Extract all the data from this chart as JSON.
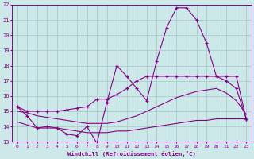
{
  "xlabel": "Windchill (Refroidissement éolien,°C)",
  "xlim": [
    -0.5,
    23.5
  ],
  "ylim": [
    13,
    22
  ],
  "xticks": [
    0,
    1,
    2,
    3,
    4,
    5,
    6,
    7,
    8,
    9,
    10,
    11,
    12,
    13,
    14,
    15,
    16,
    17,
    18,
    19,
    20,
    21,
    22,
    23
  ],
  "yticks": [
    13,
    14,
    15,
    16,
    17,
    18,
    19,
    20,
    21,
    22
  ],
  "bg_color": "#cce8e8",
  "line_color": "#880088",
  "grid_color": "#aacccc",
  "lines": [
    {
      "x": [
        0,
        1,
        2,
        3,
        4,
        5,
        6,
        7,
        8,
        9,
        10,
        11,
        12,
        13,
        14,
        15,
        16,
        17,
        18,
        19,
        20,
        21,
        22,
        23
      ],
      "y": [
        15.3,
        14.7,
        13.9,
        14.0,
        13.9,
        13.5,
        13.4,
        14.0,
        12.9,
        15.6,
        18.0,
        17.3,
        16.5,
        15.7,
        18.3,
        20.5,
        21.8,
        21.8,
        21.0,
        19.5,
        17.3,
        17.3,
        17.3,
        14.5
      ],
      "marker": "+"
    },
    {
      "x": [
        0,
        1,
        2,
        3,
        4,
        5,
        6,
        7,
        8,
        9,
        10,
        11,
        12,
        13,
        14,
        15,
        16,
        17,
        18,
        19,
        20,
        21,
        22,
        23
      ],
      "y": [
        14.3,
        14.1,
        13.9,
        13.9,
        13.9,
        13.8,
        13.7,
        13.6,
        13.6,
        13.6,
        13.7,
        13.7,
        13.8,
        13.9,
        14.0,
        14.1,
        14.2,
        14.3,
        14.4,
        14.4,
        14.5,
        14.5,
        14.5,
        14.5
      ],
      "marker": null
    },
    {
      "x": [
        0,
        1,
        2,
        3,
        4,
        5,
        6,
        7,
        8,
        9,
        10,
        11,
        12,
        13,
        14,
        15,
        16,
        17,
        18,
        19,
        20,
        21,
        22,
        23
      ],
      "y": [
        15.0,
        14.9,
        14.7,
        14.6,
        14.5,
        14.4,
        14.3,
        14.2,
        14.2,
        14.2,
        14.3,
        14.5,
        14.7,
        15.0,
        15.3,
        15.6,
        15.9,
        16.1,
        16.3,
        16.4,
        16.5,
        16.2,
        15.7,
        14.8
      ],
      "marker": null
    },
    {
      "x": [
        0,
        1,
        2,
        3,
        4,
        5,
        6,
        7,
        8,
        9,
        10,
        11,
        12,
        13,
        14,
        15,
        16,
        17,
        18,
        19,
        20,
        21,
        22,
        23
      ],
      "y": [
        15.3,
        15.0,
        15.0,
        15.0,
        15.0,
        15.1,
        15.2,
        15.3,
        15.8,
        15.8,
        16.1,
        16.5,
        17.0,
        17.3,
        17.3,
        17.3,
        17.3,
        17.3,
        17.3,
        17.3,
        17.3,
        17.0,
        16.5,
        14.5
      ],
      "marker": "+"
    }
  ]
}
